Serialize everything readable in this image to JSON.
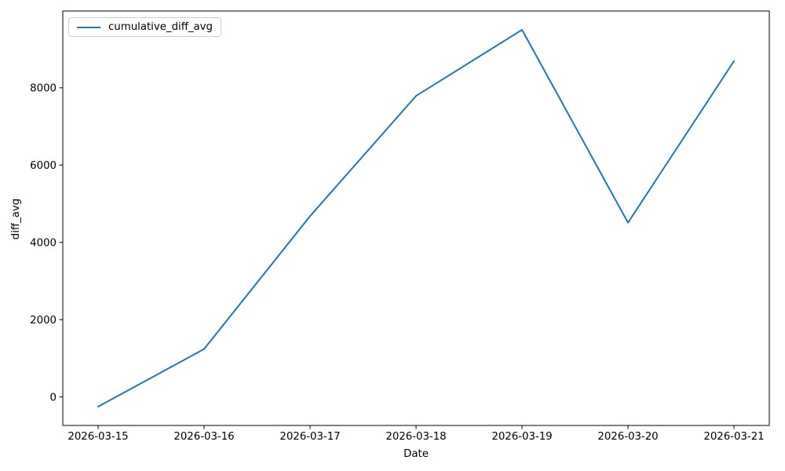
{
  "chart_data": {
    "type": "line",
    "title": "",
    "xlabel": "Date",
    "ylabel": "diff_avg",
    "categories": [
      "2026-03-15",
      "2026-03-16",
      "2026-03-17",
      "2026-03-18",
      "2026-03-19",
      "2026-03-20",
      "2026-03-21"
    ],
    "series": [
      {
        "name": "cumulative_diff_avg",
        "color": "#1f77b4",
        "values": [
          -250,
          1240,
          4680,
          7790,
          9500,
          4510,
          8690
        ]
      }
    ],
    "yticks": [
      0,
      2000,
      4000,
      6000,
      8000
    ],
    "ylim": [
      -737.5,
      9987.5
    ],
    "legend": {
      "position": "upper-left",
      "entries": [
        "cumulative_diff_avg"
      ]
    },
    "grid": false,
    "background_color": "#ffffff",
    "axis_color": "#000000",
    "text_color": "#000000"
  }
}
